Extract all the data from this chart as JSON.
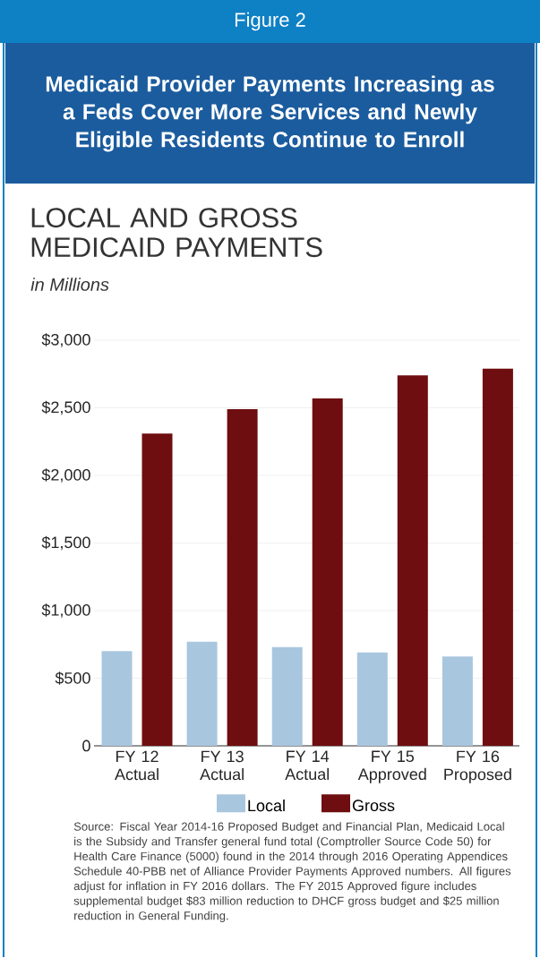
{
  "chart_data": {
    "type": "bar",
    "title": "Medicaid Provider Payments Increasing as a Feds Cover More Services and Newly Eligible Residents Continue to Enroll",
    "subtitle": "LOCAL AND GROSS MEDICAID PAYMENTS",
    "ylabel": "in Millions",
    "annotations": [
      "Figure 2",
      "Source: Fiscal Year 2014-16 Proposed Budget and Financial Plan, Medicaid Local is the Subsidy and Transfer general fund total (Comptroller Source Code 50) for Health Care Finance (5000) found in the 2014 through 2016 Operating Appendices Schedule 40-PBB net of Alliance Provider Payments Approved numbers. All figures adjust for inflation in FY 2016 dollars. The FY 2015 Approved figure includes supplemental budget $83 million reduction to DHCF gross budget and $25 million reduction in General Funding."
    ],
    "categories": [
      "FY 12 Actual",
      "FY 13 Actual",
      "FY 14 Actual",
      "FY 15 Approved",
      "FY 16 Proposed"
    ],
    "series": [
      {
        "name": "Local",
        "color": "#a9c6df",
        "values": [
          700,
          770,
          730,
          690,
          660
        ]
      },
      {
        "name": "Gross",
        "color": "#6e0e10",
        "values": [
          2310,
          2490,
          2570,
          2740,
          2790
        ]
      }
    ],
    "ylim": [
      0,
      3000
    ],
    "yticks": [
      0,
      {
        "value": 500,
        "label": "$500"
      },
      {
        "value": 1000,
        "label": "$1,000"
      },
      {
        "value": 1500,
        "label": "$1,500"
      },
      {
        "value": 2000,
        "label": "$2,000"
      },
      {
        "value": 2500,
        "label": "$2,500"
      },
      {
        "value": 3000,
        "label": "$3,000"
      }
    ],
    "grid": "y",
    "legend": "bottom"
  }
}
